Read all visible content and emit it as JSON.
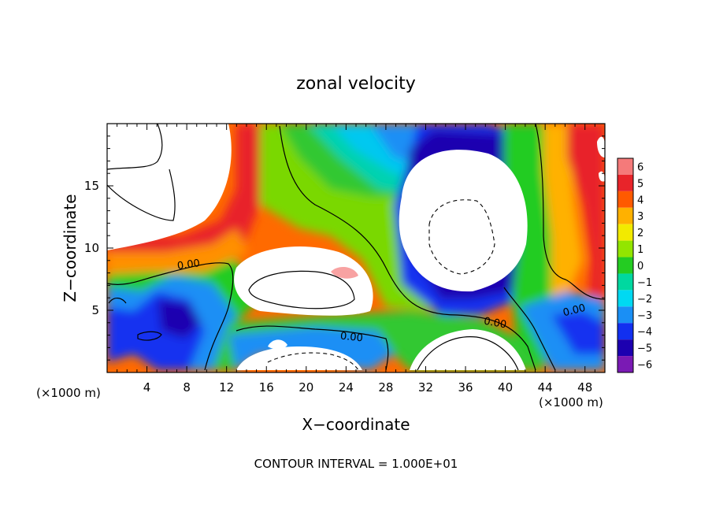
{
  "chart_data": {
    "type": "heatmap",
    "title": "zonal velocity",
    "xlabel": "X−coordinate",
    "ylabel": "Z−coordinate",
    "x_unit_left": "(×1000 m)",
    "x_unit_right": "(×1000 m)",
    "footer": "CONTOUR INTERVAL = 1.000E+01",
    "xlim": [
      0,
      50
    ],
    "ylim": [
      0,
      20
    ],
    "x_ticks": [
      4,
      8,
      12,
      16,
      20,
      24,
      28,
      32,
      36,
      40,
      44,
      48
    ],
    "x_tick_labels": [
      "4",
      "8",
      "12",
      "16",
      "20",
      "24",
      "28",
      "32",
      "36",
      "40",
      "44",
      "48"
    ],
    "y_ticks": [
      5,
      10,
      15
    ],
    "y_tick_labels": [
      "5",
      "10",
      "15"
    ],
    "colorbar": {
      "values": [
        6,
        5,
        4,
        3,
        2,
        1,
        0,
        -1,
        -2,
        -3,
        -4,
        -5,
        -6
      ],
      "labels": [
        "6",
        "5",
        "4",
        "3",
        "2",
        "1",
        "0",
        "−1",
        "−2",
        "−3",
        "−4",
        "−5",
        "−6"
      ],
      "colors": [
        "#f57a7a",
        "#e8242a",
        "#ff5a00",
        "#ffb100",
        "#f2ea00",
        "#93e500",
        "#24cc22",
        "#00d8a0",
        "#00d9f2",
        "#1a8ff5",
        "#1230f0",
        "#1c00b0",
        "#7a1ab4"
      ]
    },
    "contour_labels": [
      "0.00",
      "0.00",
      "0.00",
      "0.00"
    ],
    "fields": {
      "background": "#ff6a00"
    }
  }
}
